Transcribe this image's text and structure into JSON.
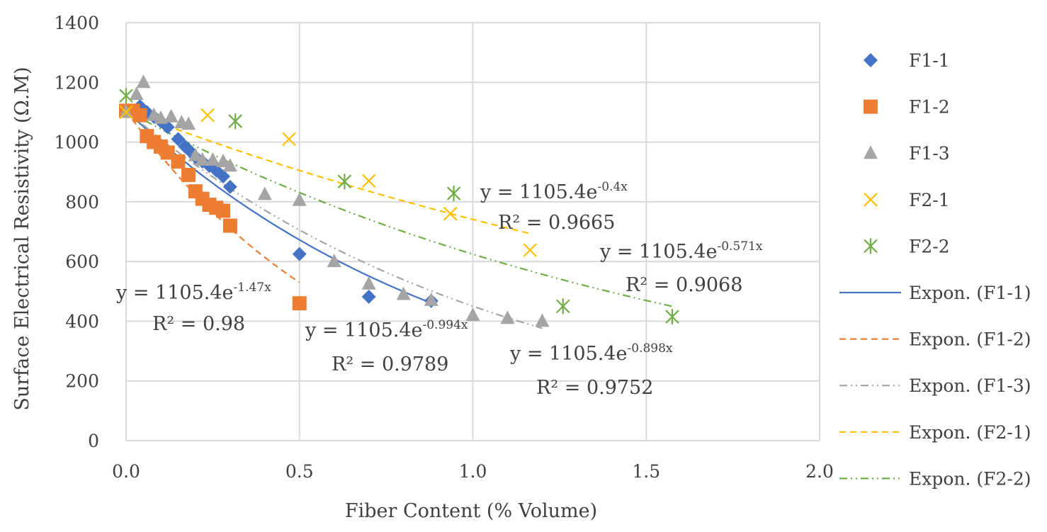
{
  "chart_data": {
    "type": "scatter",
    "xlabel": "Fiber Content (% Volume)",
    "ylabel": "Surface Electrical Resistivity (Ω.M)",
    "xlim": [
      0,
      2
    ],
    "ylim": [
      0,
      1400
    ],
    "xticks": [
      "0.0",
      "0.5",
      "1.0",
      "1.5",
      "2.0"
    ],
    "yticks": [
      "0",
      "200",
      "400",
      "600",
      "800",
      "1000",
      "1200",
      "1400"
    ],
    "grid": true,
    "legend_position": "right",
    "series": [
      {
        "name": "F1-1",
        "marker": "diamond",
        "color": "#4472C4",
        "points": [
          [
            0,
            1105
          ],
          [
            0.04,
            1120
          ],
          [
            0.06,
            1100
          ],
          [
            0.08,
            1085
          ],
          [
            0.1,
            1070
          ],
          [
            0.12,
            1050
          ],
          [
            0.15,
            1010
          ],
          [
            0.17,
            985
          ],
          [
            0.18,
            975
          ],
          [
            0.2,
            950
          ],
          [
            0.22,
            935
          ],
          [
            0.24,
            920
          ],
          [
            0.26,
            905
          ],
          [
            0.28,
            885
          ],
          [
            0.3,
            850
          ],
          [
            0.5,
            625
          ],
          [
            0.7,
            482
          ],
          [
            0.88,
            468
          ]
        ]
      },
      {
        "name": "F1-2",
        "marker": "square",
        "color": "#ED7D31",
        "points": [
          [
            0,
            1105
          ],
          [
            0.02,
            1105
          ],
          [
            0.04,
            1090
          ],
          [
            0.06,
            1020
          ],
          [
            0.08,
            1000
          ],
          [
            0.1,
            985
          ],
          [
            0.12,
            965
          ],
          [
            0.15,
            935
          ],
          [
            0.18,
            890
          ],
          [
            0.2,
            835
          ],
          [
            0.22,
            810
          ],
          [
            0.24,
            790
          ],
          [
            0.26,
            780
          ],
          [
            0.28,
            770
          ],
          [
            0.3,
            720
          ],
          [
            0.5,
            460
          ]
        ]
      },
      {
        "name": "F1-3",
        "marker": "triangle",
        "color": "#A5A5A5",
        "points": [
          [
            0,
            1100
          ],
          [
            0.03,
            1160
          ],
          [
            0.05,
            1200
          ],
          [
            0.08,
            1090
          ],
          [
            0.1,
            1080
          ],
          [
            0.13,
            1085
          ],
          [
            0.16,
            1065
          ],
          [
            0.18,
            1060
          ],
          [
            0.2,
            955
          ],
          [
            0.22,
            940
          ],
          [
            0.25,
            940
          ],
          [
            0.28,
            935
          ],
          [
            0.3,
            920
          ],
          [
            0.4,
            825
          ],
          [
            0.5,
            805
          ],
          [
            0.6,
            600
          ],
          [
            0.7,
            525
          ],
          [
            0.8,
            490
          ],
          [
            0.88,
            470
          ],
          [
            1.0,
            420
          ],
          [
            1.1,
            410
          ],
          [
            1.2,
            400
          ]
        ]
      },
      {
        "name": "F2-1",
        "marker": "x",
        "color": "#FFC000",
        "points": [
          [
            0,
            1100
          ],
          [
            0.235,
            1090
          ],
          [
            0.47,
            1010
          ],
          [
            0.7,
            870
          ],
          [
            0.935,
            760
          ],
          [
            1.165,
            638
          ]
        ]
      },
      {
        "name": "F2-2",
        "marker": "asterisk",
        "color": "#70AD47",
        "points": [
          [
            0,
            1155
          ],
          [
            0.315,
            1070
          ],
          [
            0.63,
            868
          ],
          [
            0.945,
            828
          ],
          [
            1.26,
            450
          ],
          [
            1.575,
            415
          ]
        ]
      }
    ],
    "trendlines": [
      {
        "name": "Expon. (F1-1)",
        "series": "F1-1",
        "a": 1105.4,
        "b": -0.994,
        "x_range": [
          0,
          0.88
        ],
        "color": "#4472C4",
        "dash": "solid",
        "equation": "y = 1105.4e",
        "exponent": "-0.994x",
        "r2": "R² = 0.9789"
      },
      {
        "name": "Expon. (F1-2)",
        "series": "F1-2",
        "a": 1105.4,
        "b": -1.47,
        "x_range": [
          0,
          0.5
        ],
        "color": "#ED7D31",
        "dash": "dash",
        "equation": "y = 1105.4e",
        "exponent": "-1.47x",
        "r2": "R² = 0.98"
      },
      {
        "name": "Expon. (F1-3)",
        "series": "F1-3",
        "a": 1105.4,
        "b": -0.898,
        "x_range": [
          0,
          1.2
        ],
        "color": "#A5A5A5",
        "dash": "dashdotdot",
        "equation": "y = 1105.4e",
        "exponent": "-0.898x",
        "r2": "R² = 0.9752"
      },
      {
        "name": "Expon. (F2-1)",
        "series": "F2-1",
        "a": 1105.4,
        "b": -0.4,
        "x_range": [
          0,
          1.165
        ],
        "color": "#FFC000",
        "dash": "dash",
        "equation": "y = 1105.4e",
        "exponent": "-0.4x",
        "r2": "R² = 0.9665"
      },
      {
        "name": "Expon. (F2-2)",
        "series": "F2-2",
        "a": 1105.4,
        "b": -0.571,
        "x_range": [
          0,
          1.575
        ],
        "color": "#70AD47",
        "dash": "dashdotdot",
        "equation": "y = 1105.4e",
        "exponent": "-0.571x",
        "r2": "R² = 0.9068"
      }
    ]
  }
}
